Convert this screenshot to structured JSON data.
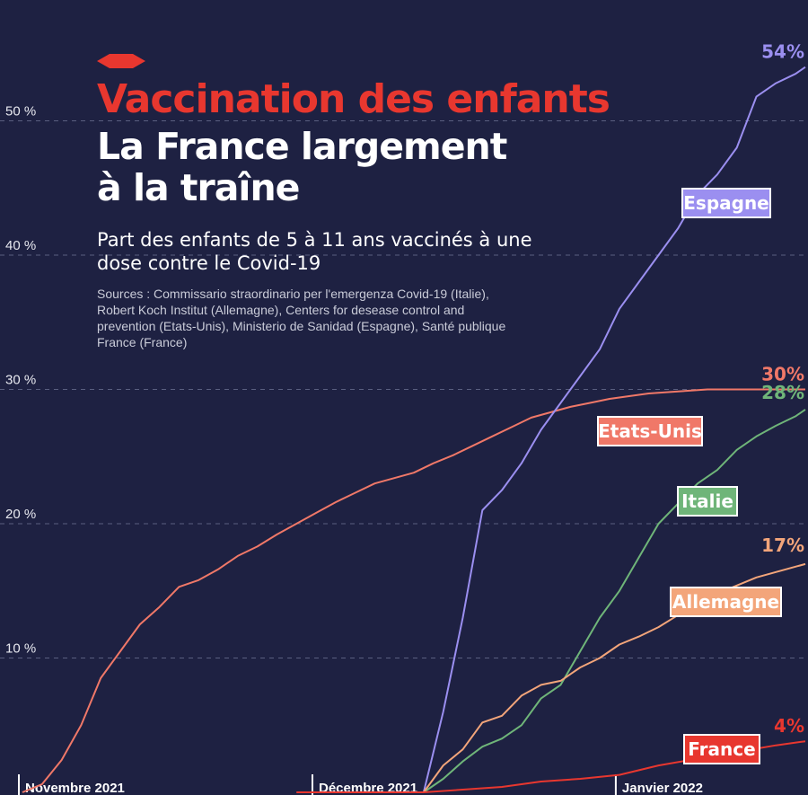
{
  "title": "Vaccination des enfants",
  "subtitle_lines": [
    "La France largement",
    "à la traîne"
  ],
  "description": "Part des enfants de 5 à 11 ans vaccinés à une dose contre le Covid-19",
  "sources": "Sources : Commissario straordinario per l'emergenza Covid-19 (Italie), Robert Koch Institut (Allemagne), Centers for desease control and prevention (Etats-Unis), Ministerio de Sanidad (Espagne), Santé publique France (France)",
  "colors": {
    "background": "#1e2142",
    "title_red": "#e8372f",
    "grid": "#5a5f80"
  },
  "chart_data": {
    "type": "line",
    "x_unit": "days from 2021-11-01",
    "x_ticks": [
      {
        "x": 0,
        "label": "Novembre 2021"
      },
      {
        "x": 30,
        "label": "Décembre 2021"
      },
      {
        "x": 61,
        "label": "Janvier 2022"
      }
    ],
    "y_ticks": [
      10,
      20,
      30,
      40,
      50
    ],
    "y_tick_labels": [
      "10 %",
      "20 %",
      "30 %",
      "40 %",
      "50 %"
    ],
    "ylim": [
      0,
      57
    ],
    "xlim": [
      0,
      80
    ],
    "grid": "horizontal dashed",
    "series": [
      {
        "name": "Etats-Unis",
        "color": "#f07868",
        "end_label": "30%",
        "points": [
          [
            0,
            0
          ],
          [
            2,
            0.6
          ],
          [
            4,
            2.4
          ],
          [
            6,
            5
          ],
          [
            8,
            8.5
          ],
          [
            10,
            10.5
          ],
          [
            12,
            12.5
          ],
          [
            14,
            13.8
          ],
          [
            16,
            15.3
          ],
          [
            18,
            15.8
          ],
          [
            20,
            16.6
          ],
          [
            22,
            17.6
          ],
          [
            24,
            18.3
          ],
          [
            26,
            19.2
          ],
          [
            28,
            20
          ],
          [
            30,
            20.8
          ],
          [
            32,
            21.6
          ],
          [
            34,
            22.3
          ],
          [
            36,
            23
          ],
          [
            38,
            23.4
          ],
          [
            40,
            23.8
          ],
          [
            42,
            24.5
          ],
          [
            44,
            25.1
          ],
          [
            46,
            25.8
          ],
          [
            48,
            26.5
          ],
          [
            50,
            27.2
          ],
          [
            52,
            27.9
          ],
          [
            54,
            28.3
          ],
          [
            56,
            28.7
          ],
          [
            58,
            29
          ],
          [
            60,
            29.3
          ],
          [
            62,
            29.5
          ],
          [
            64,
            29.7
          ],
          [
            66,
            29.8
          ],
          [
            68,
            29.9
          ],
          [
            70,
            30
          ],
          [
            72,
            30
          ],
          [
            74,
            30
          ],
          [
            76,
            30
          ],
          [
            78,
            30
          ],
          [
            80,
            30
          ]
        ]
      },
      {
        "name": "Espagne",
        "color": "#9b8ff0",
        "end_label": "54%",
        "points": [
          [
            41,
            0
          ],
          [
            43,
            6
          ],
          [
            45,
            13
          ],
          [
            47,
            21
          ],
          [
            49,
            22.5
          ],
          [
            51,
            24.5
          ],
          [
            53,
            27
          ],
          [
            55,
            29
          ],
          [
            57,
            31
          ],
          [
            59,
            33
          ],
          [
            61,
            36
          ],
          [
            63,
            38
          ],
          [
            65,
            40
          ],
          [
            67,
            42
          ],
          [
            69,
            44.5
          ],
          [
            71,
            46
          ],
          [
            73,
            48
          ],
          [
            75,
            51.8
          ],
          [
            77,
            52.8
          ],
          [
            79,
            53.5
          ],
          [
            80,
            54
          ]
        ]
      },
      {
        "name": "Italie",
        "color": "#6fb579",
        "end_label": "28%",
        "points": [
          [
            41,
            0
          ],
          [
            43,
            1
          ],
          [
            45,
            2.3
          ],
          [
            47,
            3.4
          ],
          [
            49,
            4
          ],
          [
            51,
            5
          ],
          [
            53,
            7
          ],
          [
            55,
            8
          ],
          [
            57,
            10.5
          ],
          [
            59,
            13
          ],
          [
            61,
            15
          ],
          [
            63,
            17.5
          ],
          [
            65,
            20
          ],
          [
            67,
            21.5
          ],
          [
            69,
            23
          ],
          [
            71,
            24
          ],
          [
            73,
            25.5
          ],
          [
            75,
            26.5
          ],
          [
            77,
            27.3
          ],
          [
            79,
            28
          ],
          [
            80,
            28.5
          ]
        ]
      },
      {
        "name": "Allemagne",
        "color": "#f3a57a",
        "end_label": "17%",
        "points": [
          [
            41,
            0
          ],
          [
            43,
            2
          ],
          [
            45,
            3.2
          ],
          [
            47,
            5.2
          ],
          [
            49,
            5.7
          ],
          [
            51,
            7.2
          ],
          [
            53,
            8
          ],
          [
            55,
            8.3
          ],
          [
            57,
            9.3
          ],
          [
            59,
            10
          ],
          [
            61,
            11
          ],
          [
            63,
            11.6
          ],
          [
            65,
            12.3
          ],
          [
            67,
            13.2
          ],
          [
            69,
            14
          ],
          [
            71,
            14.8
          ],
          [
            73,
            15.4
          ],
          [
            75,
            16
          ],
          [
            77,
            16.4
          ],
          [
            79,
            16.8
          ],
          [
            80,
            17
          ]
        ]
      },
      {
        "name": "France",
        "color": "#e8372f",
        "end_label": "4%",
        "points": [
          [
            28,
            0
          ],
          [
            41,
            0
          ],
          [
            45,
            0.2
          ],
          [
            49,
            0.4
          ],
          [
            53,
            0.8
          ],
          [
            57,
            1
          ],
          [
            61,
            1.3
          ],
          [
            65,
            2
          ],
          [
            69,
            2.5
          ],
          [
            73,
            3
          ],
          [
            77,
            3.5
          ],
          [
            80,
            3.8
          ]
        ]
      }
    ]
  }
}
